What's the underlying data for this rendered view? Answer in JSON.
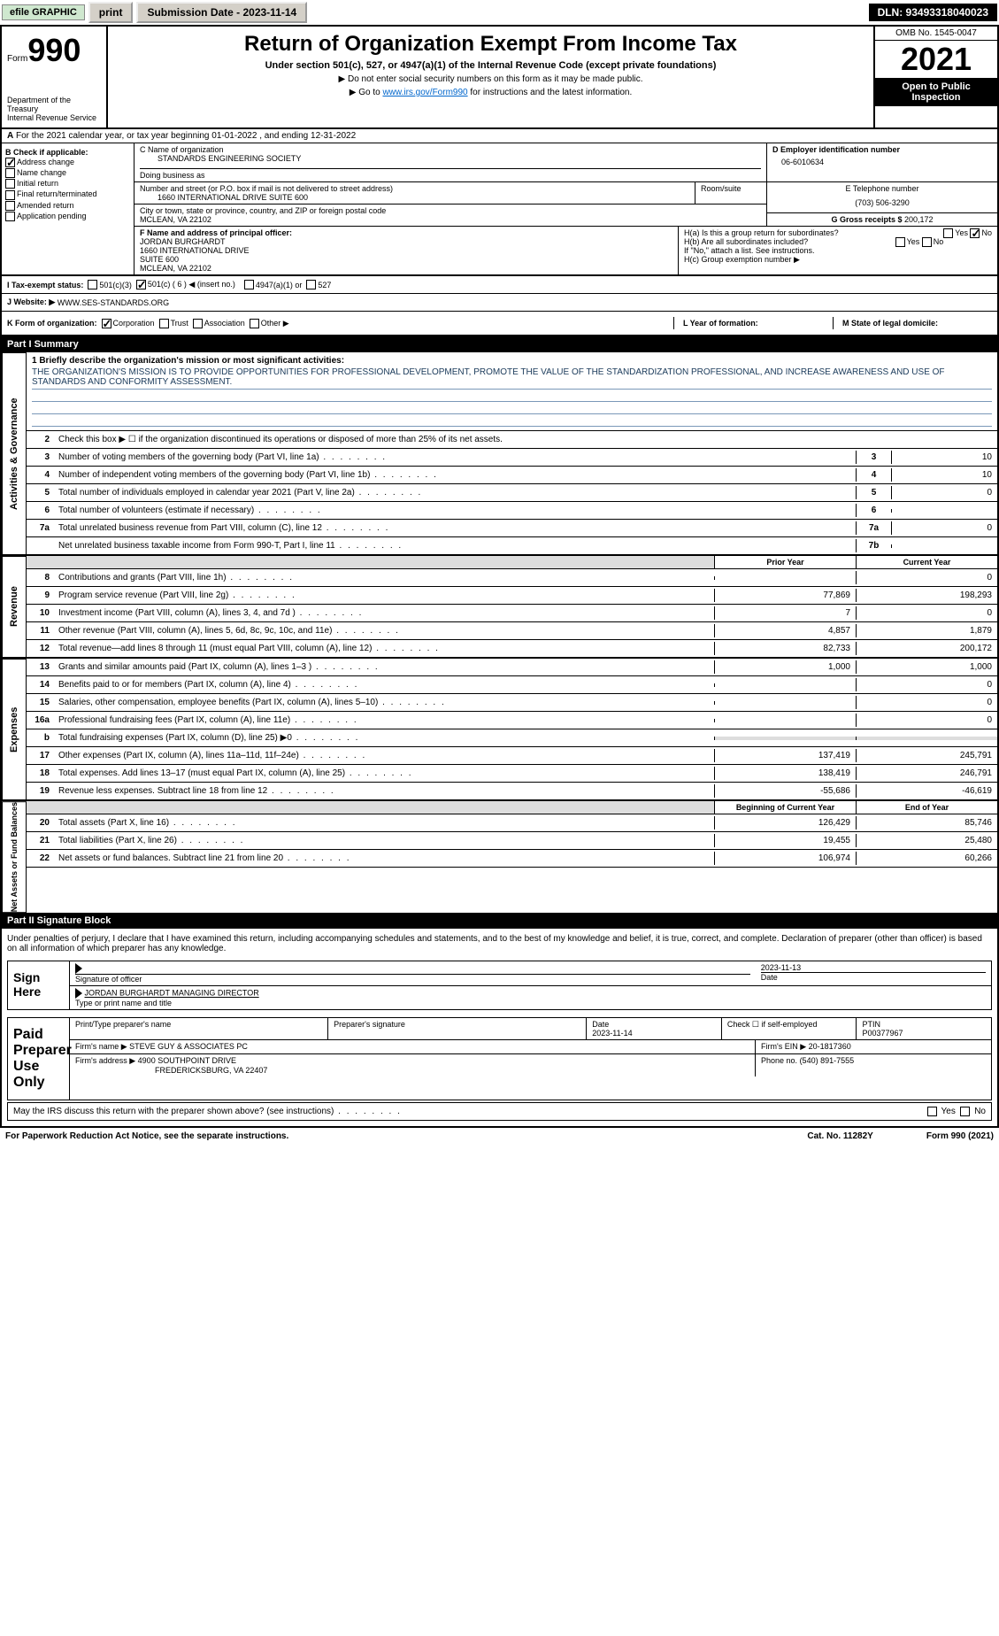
{
  "header": {
    "efile": "efile GRAPHIC",
    "print": "print",
    "submission_date_label": "Submission Date - 2023-11-14",
    "dln": "DLN: 93493318040023"
  },
  "form": {
    "form_label": "Form",
    "form_number": "990",
    "dept": "Department of the Treasury",
    "irs": "Internal Revenue Service",
    "title": "Return of Organization Exempt From Income Tax",
    "subtitle": "Under section 501(c), 527, or 4947(a)(1) of the Internal Revenue Code (except private foundations)",
    "note1": "▶ Do not enter social security numbers on this form as it may be made public.",
    "note2_pre": "▶ Go to ",
    "note2_link": "www.irs.gov/Form990",
    "note2_post": " for instructions and the latest information.",
    "omb": "OMB No. 1545-0047",
    "year": "2021",
    "inspection": "Open to Public Inspection"
  },
  "line_a": "For the 2021 calendar year, or tax year beginning 01-01-2022   , and ending 12-31-2022",
  "section_b": {
    "label": "B Check if applicable:",
    "addr_change": "Address change",
    "name_change": "Name change",
    "initial": "Initial return",
    "final": "Final return/terminated",
    "amended": "Amended return",
    "pending": "Application pending"
  },
  "section_c": {
    "name_label": "C Name of organization",
    "name": "STANDARDS ENGINEERING SOCIETY",
    "dba_label": "Doing business as",
    "street_label": "Number and street (or P.O. box if mail is not delivered to street address)",
    "street": "1660 INTERNATIONAL DRIVE SUITE 600",
    "room_label": "Room/suite",
    "city_label": "City or town, state or province, country, and ZIP or foreign postal code",
    "city": "MCLEAN, VA  22102"
  },
  "section_d": {
    "label": "D Employer identification number",
    "value": "06-6010634"
  },
  "section_e": {
    "label": "E Telephone number",
    "value": "(703) 506-3290"
  },
  "section_g": {
    "label": "G Gross receipts $",
    "value": "200,172"
  },
  "section_f": {
    "label": "F  Name and address of principal officer:",
    "name": "JORDAN BURGHARDT",
    "addr1": "1660 INTERNATIONAL DRIVE",
    "addr2": "SUITE 600",
    "addr3": "MCLEAN, VA  22102"
  },
  "section_h": {
    "a": "H(a)  Is this a group return for subordinates?",
    "b": "H(b)  Are all subordinates included?",
    "note": "If \"No,\" attach a list. See instructions.",
    "c": "H(c)  Group exemption number ▶",
    "yes": "Yes",
    "no": "No"
  },
  "line_i": {
    "label": "I   Tax-exempt status:",
    "o1": "501(c)(3)",
    "o2": "501(c) ( 6 ) ◀ (insert no.)",
    "o3": "4947(a)(1) or",
    "o4": "527"
  },
  "line_j": {
    "label": "J   Website: ▶",
    "value": "WWW.SES-STANDARDS.ORG"
  },
  "line_k": {
    "label": "K Form of organization:",
    "corp": "Corporation",
    "trust": "Trust",
    "assoc": "Association",
    "other": "Other ▶",
    "l": "L Year of formation:",
    "m": "M State of legal domicile:"
  },
  "part1": {
    "header": "Part I      Summary",
    "q1_label": "1  Briefly describe the organization's mission or most significant activities:",
    "mission": "THE ORGANIZATION'S MISSION IS TO PROVIDE OPPORTUNITIES FOR PROFESSIONAL DEVELOPMENT, PROMOTE THE VALUE OF THE STANDARDIZATION PROFESSIONAL, AND INCREASE AWARENESS AND USE OF STANDARDS AND CONFORMITY ASSESSMENT.",
    "q2": "Check this box ▶ ☐  if the organization discontinued its operations or disposed of more than 25% of its net assets.",
    "rows": [
      {
        "n": "3",
        "t": "Number of voting members of the governing body (Part VI, line 1a)",
        "box": "3",
        "v": "10"
      },
      {
        "n": "4",
        "t": "Number of independent voting members of the governing body (Part VI, line 1b)",
        "box": "4",
        "v": "10"
      },
      {
        "n": "5",
        "t": "Total number of individuals employed in calendar year 2021 (Part V, line 2a)",
        "box": "5",
        "v": "0"
      },
      {
        "n": "6",
        "t": "Total number of volunteers (estimate if necessary)",
        "box": "6",
        "v": ""
      },
      {
        "n": "7a",
        "t": "Total unrelated business revenue from Part VIII, column (C), line 12",
        "box": "7a",
        "v": "0"
      },
      {
        "n": "",
        "t": "Net unrelated business taxable income from Form 990-T, Part I, line 11",
        "box": "7b",
        "v": ""
      }
    ],
    "prior_label": "Prior Year",
    "current_label": "Current Year",
    "revenue": [
      {
        "n": "8",
        "t": "Contributions and grants (Part VIII, line 1h)",
        "p": "",
        "c": "0"
      },
      {
        "n": "9",
        "t": "Program service revenue (Part VIII, line 2g)",
        "p": "77,869",
        "c": "198,293"
      },
      {
        "n": "10",
        "t": "Investment income (Part VIII, column (A), lines 3, 4, and 7d )",
        "p": "7",
        "c": "0"
      },
      {
        "n": "11",
        "t": "Other revenue (Part VIII, column (A), lines 5, 6d, 8c, 9c, 10c, and 11e)",
        "p": "4,857",
        "c": "1,879"
      },
      {
        "n": "12",
        "t": "Total revenue—add lines 8 through 11 (must equal Part VIII, column (A), line 12)",
        "p": "82,733",
        "c": "200,172"
      }
    ],
    "expenses": [
      {
        "n": "13",
        "t": "Grants and similar amounts paid (Part IX, column (A), lines 1–3 )",
        "p": "1,000",
        "c": "1,000"
      },
      {
        "n": "14",
        "t": "Benefits paid to or for members (Part IX, column (A), line 4)",
        "p": "",
        "c": "0"
      },
      {
        "n": "15",
        "t": "Salaries, other compensation, employee benefits (Part IX, column (A), lines 5–10)",
        "p": "",
        "c": "0"
      },
      {
        "n": "16a",
        "t": "Professional fundraising fees (Part IX, column (A), line 11e)",
        "p": "",
        "c": "0"
      },
      {
        "n": "b",
        "t": "Total fundraising expenses (Part IX, column (D), line 25) ▶0",
        "p": "",
        "c": "",
        "shade": true
      },
      {
        "n": "17",
        "t": "Other expenses (Part IX, column (A), lines 11a–11d, 11f–24e)",
        "p": "137,419",
        "c": "245,791"
      },
      {
        "n": "18",
        "t": "Total expenses. Add lines 13–17 (must equal Part IX, column (A), line 25)",
        "p": "138,419",
        "c": "246,791"
      },
      {
        "n": "19",
        "t": "Revenue less expenses. Subtract line 18 from line 12",
        "p": "-55,686",
        "c": "-46,619"
      }
    ],
    "begin_label": "Beginning of Current Year",
    "end_label": "End of Year",
    "netassets": [
      {
        "n": "20",
        "t": "Total assets (Part X, line 16)",
        "p": "126,429",
        "c": "85,746"
      },
      {
        "n": "21",
        "t": "Total liabilities (Part X, line 26)",
        "p": "19,455",
        "c": "25,480"
      },
      {
        "n": "22",
        "t": "Net assets or fund balances. Subtract line 21 from line 20",
        "p": "106,974",
        "c": "60,266"
      }
    ]
  },
  "part2": {
    "header": "Part II     Signature Block",
    "declaration": "Under penalties of perjury, I declare that I have examined this return, including accompanying schedules and statements, and to the best of my knowledge and belief, it is true, correct, and complete. Declaration of preparer (other than officer) is based on all information of which preparer has any knowledge.",
    "sign_here": "Sign Here",
    "sig_officer": "Signature of officer",
    "sig_date": "2023-11-13",
    "date_label": "Date",
    "officer_name": "JORDAN BURGHARDT MANAGING DIRECTOR",
    "type_label": "Type or print name and title",
    "paid": "Paid Preparer Use Only",
    "prep_name_label": "Print/Type preparer's name",
    "prep_sig_label": "Preparer's signature",
    "prep_date": "2023-11-14",
    "check_if": "Check ☐ if self-employed",
    "ptin_label": "PTIN",
    "ptin": "P00377967",
    "firm_name_label": "Firm's name     ▶",
    "firm_name": "STEVE GUY & ASSOCIATES PC",
    "firm_ein_label": "Firm's EIN ▶",
    "firm_ein": "20-1817360",
    "firm_addr_label": "Firm's address ▶",
    "firm_addr1": "4900 SOUTHPOINT DRIVE",
    "firm_addr2": "FREDERICKSBURG, VA  22407",
    "phone_label": "Phone no.",
    "phone": "(540) 891-7555",
    "discuss": "May the IRS discuss this return with the preparer shown above? (see instructions)"
  },
  "footer": {
    "left": "For Paperwork Reduction Act Notice, see the separate instructions.",
    "mid": "Cat. No. 11282Y",
    "right": "Form 990 (2021)"
  },
  "labels": {
    "vert_ag": "Activities & Governance",
    "vert_rev": "Revenue",
    "vert_exp": "Expenses",
    "vert_net": "Net Assets or Fund Balances"
  }
}
